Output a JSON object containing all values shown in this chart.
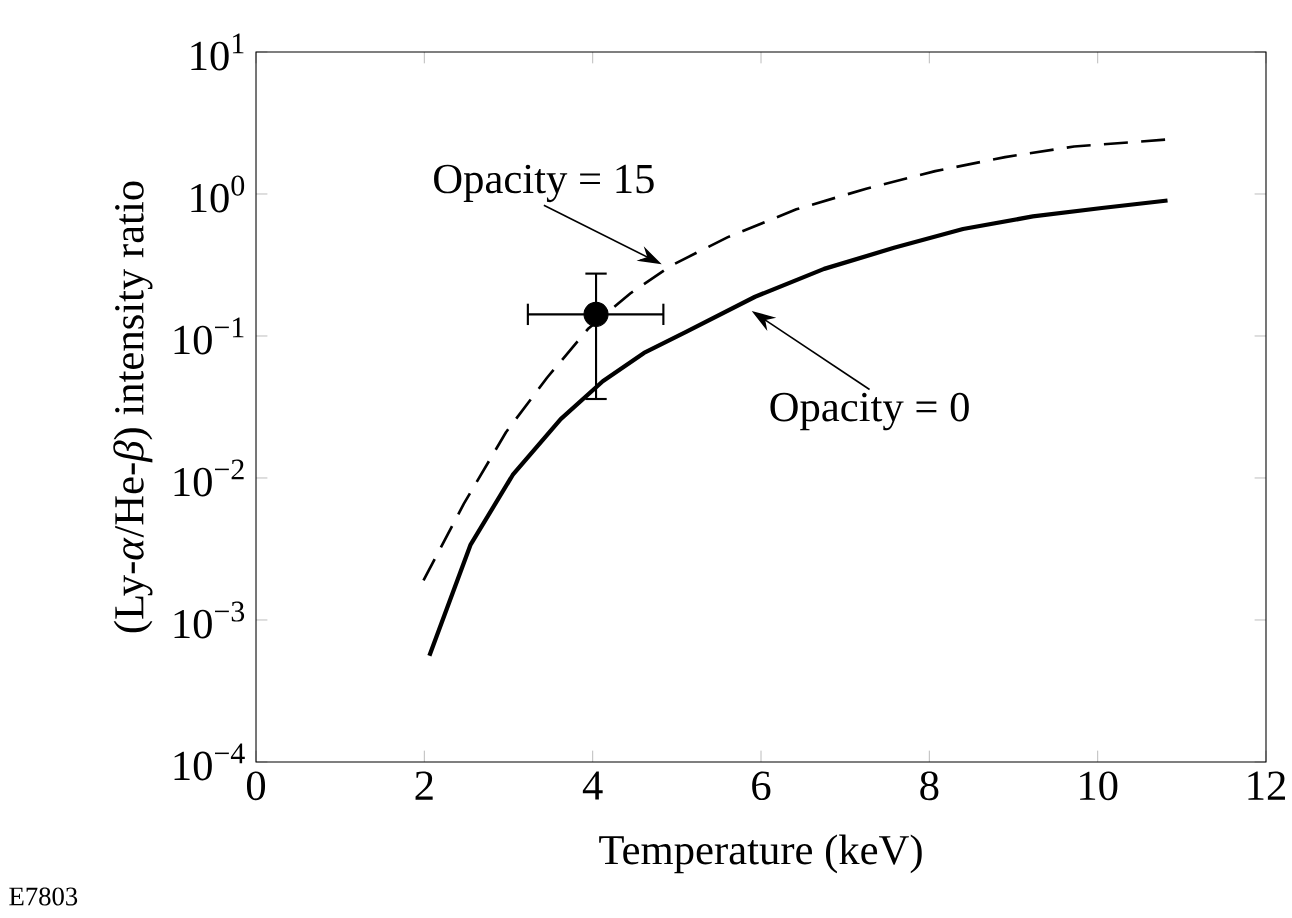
{
  "chart_data": {
    "type": "line",
    "xlabel": "Temperature (keV)",
    "ylabel": "(Ly-*α*/He-*β*) intensity ratio",
    "xlim": [
      0,
      12
    ],
    "xticks": [
      0,
      2,
      4,
      6,
      8,
      10,
      12
    ],
    "ylim": [
      0.0001,
      10
    ],
    "log": "y",
    "yticks": [
      {
        "value": 0.0001,
        "label": "10$^{−4}$"
      },
      {
        "value": 0.001,
        "label": "10$^{−3}$"
      },
      {
        "value": 0.01,
        "label": "10$^{−2}$"
      },
      {
        "value": 0.1,
        "label": "10$^{−1}$"
      },
      {
        "value": 1,
        "label": "10$^{0}$"
      },
      {
        "value": 10,
        "label": "10$^{1}$"
      }
    ],
    "grid": false,
    "series": [
      {
        "line_style": "dashed",
        "color": "#000000",
        "x": [
          1.99,
          2.47,
          2.97,
          3.46,
          3.95,
          4.45,
          4.94,
          5.6,
          6.42,
          7.25,
          8.07,
          8.9,
          9.72,
          10.83
        ],
        "values": [
          0.0019,
          0.0066,
          0.021,
          0.051,
          0.113,
          0.2,
          0.315,
          0.495,
          0.78,
          1.09,
          1.45,
          1.82,
          2.16,
          2.42
        ]
      },
      {
        "line_style": "solid",
        "color": "#000000",
        "x": [
          2.06,
          2.55,
          3.05,
          3.62,
          4.12,
          4.61,
          5.11,
          5.93,
          6.75,
          7.58,
          8.4,
          9.23,
          10.05,
          10.83
        ],
        "values": [
          0.00056,
          0.0034,
          0.0105,
          0.026,
          0.048,
          0.076,
          0.107,
          0.189,
          0.297,
          0.418,
          0.567,
          0.695,
          0.797,
          0.9
        ]
      },
      {
        "type": "scatter",
        "marker": "circle",
        "color": "#000000",
        "x": [
          4.04
        ],
        "values": [
          0.142
        ],
        "errors": [
          [
            0.036,
            0.275
          ]
        ],
        "xerrors": [
          [
            3.23,
            4.84
          ]
        ]
      }
    ],
    "annotations": [
      {
        "text": "Opacity = 15",
        "x": 4.82,
        "y": 0.32
      },
      {
        "text": "Opacity = 0",
        "x": 5.89,
        "y": 0.15
      },
      "E7803"
    ]
  }
}
